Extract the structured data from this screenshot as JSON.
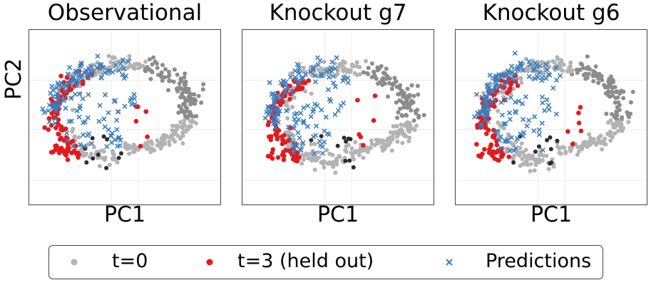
{
  "ylabel": "PC2",
  "chart_data": [
    {
      "type": "scatter",
      "title": "Observational",
      "xlabel": "PC1",
      "ylabel": "PC2",
      "grid": true,
      "seed": 11,
      "variant": 0
    },
    {
      "type": "scatter",
      "title": "Knockout g7",
      "xlabel": "PC1",
      "ylabel": "",
      "grid": true,
      "seed": 23,
      "variant": 1
    },
    {
      "type": "scatter",
      "title": "Knockout g6",
      "xlabel": "PC1",
      "ylabel": "",
      "grid": true,
      "seed": 37,
      "variant": 2
    }
  ],
  "legend": {
    "items": [
      {
        "label": "t=0",
        "marker": "dot",
        "color": "#b3b3b3"
      },
      {
        "label": "t=3 (held out)",
        "marker": "dot",
        "color": "#e31a1c"
      },
      {
        "label": "Predictions",
        "marker": "x",
        "color": "#3a7dbf"
      }
    ]
  },
  "colors": {
    "t0_light": "#b3b3b3",
    "t0_mid": "#8c8c8c",
    "t0_dark": "#2b2b2b",
    "held_out": "#e31a1c",
    "predictions": "#3a7dbf",
    "grid": "#ececec",
    "frame": "#444444"
  }
}
